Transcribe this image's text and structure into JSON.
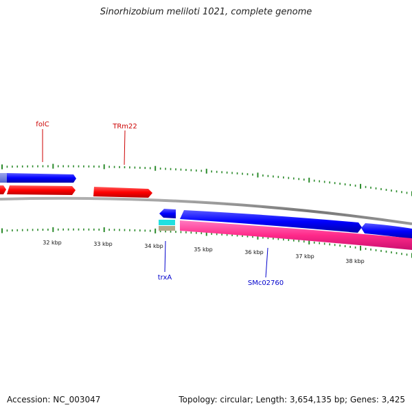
{
  "title": "Sinorhizobium meliloti 1021, complete genome",
  "footer": {
    "accession": "Accession: NC_003047",
    "summary": "Topology: circular; Length: 3,654,135 bp; Genes: 3,425"
  },
  "colors": {
    "forward_cds": "#0000ff",
    "forward_cds_faded": "#6677dd",
    "reverse_cds": "#ff0000",
    "rna_reverse": "#ff2a8a",
    "misc_cyan": "#22e0e0",
    "misc_tan": "#b5a98a",
    "backbone": "#808080",
    "tick": "#2a8a2a",
    "label_red": "#cc0000",
    "label_blue": "#0000cc"
  },
  "scale_labels": [
    "32 kbp",
    "33 kbp",
    "34 kbp",
    "35 kbp",
    "36 kbp",
    "37 kbp",
    "38 kbp"
  ],
  "gene_labels": {
    "folC": "folC",
    "TRm22": "TRm22",
    "trxA": "trxA",
    "SMc02760": "SMc02760"
  }
}
